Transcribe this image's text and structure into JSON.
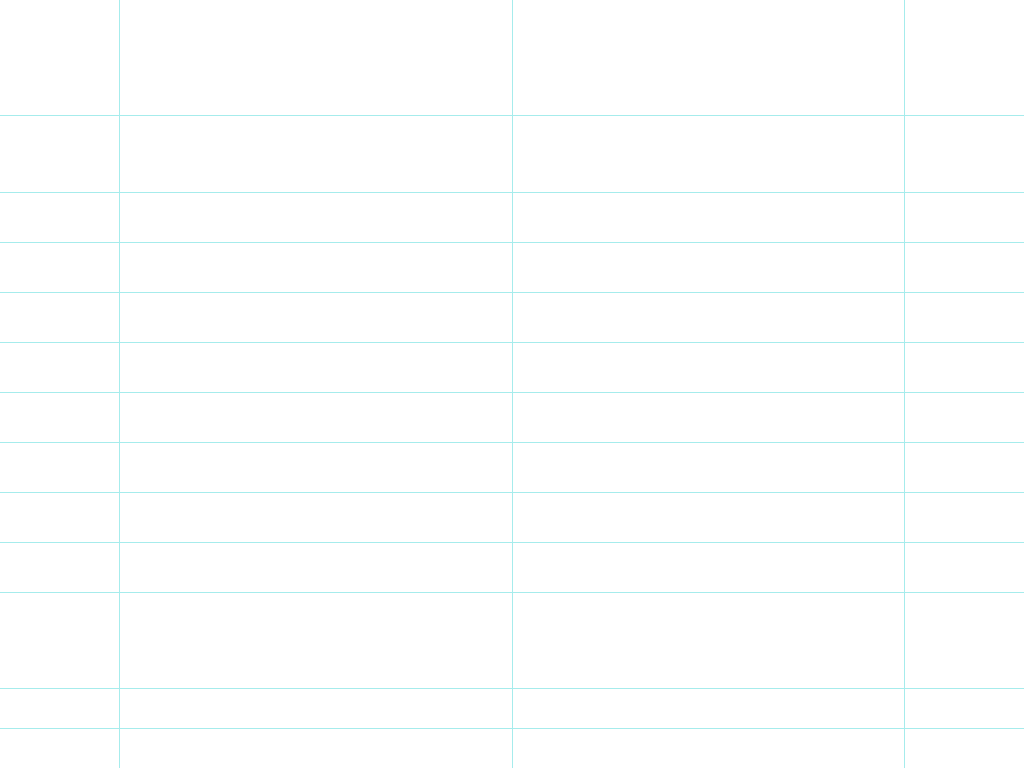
{
  "grid": {
    "line_color": "#a6ecec",
    "background_color": "#ffffff",
    "rows": 12,
    "columns": 4
  }
}
